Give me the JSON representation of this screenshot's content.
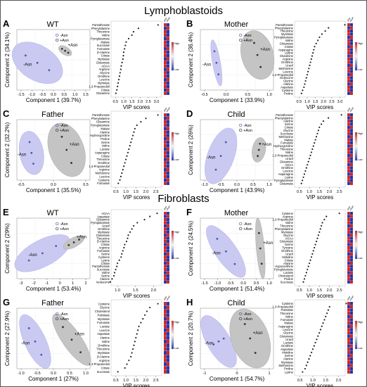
{
  "figure": {
    "section_titles": [
      "Lymphoblastoids",
      "Fibroblasts"
    ],
    "legend": {
      "minus": "-Asn",
      "plus": "+Asn"
    },
    "scale_labels": {
      "high": "High",
      "low": "Low"
    },
    "heatmap_colors": {
      "high": "#cc2222",
      "low": "#2233aa"
    }
  },
  "panels": [
    {
      "letter": "A",
      "title": "WT",
      "pca": {
        "xlabel": "Component 1 (39.7%)",
        "ylabel": "Component 2 (34.1%)",
        "xticks": [
          "-1.5",
          "-1.0",
          "-0.5",
          "0.0",
          "0.5",
          "1.0",
          "1.5"
        ],
        "yticks": [],
        "minus_label": "-Asn",
        "plus_label": "+Asn"
      },
      "vip": {
        "xlabel": "VIP scores",
        "xticks": [
          "0.5",
          "1.0",
          "1.5",
          "2.0",
          "2.5",
          "3.0"
        ],
        "metabolites": [
          "Pantothenate",
          "Phenylalanine",
          "Threonine",
          "Valine",
          "Pyroglutamate",
          "Malate",
          "Succinate",
          "Fumarate",
          "β-Alanine",
          "Citrate",
          "Myristate",
          "Glutamate",
          "AOAA",
          "Arginine",
          "Glycine",
          "Ornithine",
          "Leucine",
          "Myristate",
          "1,3-Propanediol",
          "Citrate",
          "Glutamine"
        ],
        "scores": [
          3.1,
          1.9,
          1.6,
          1.5,
          1.3,
          1.15,
          1.1,
          1.05,
          1.0,
          0.98,
          0.95,
          0.9,
          0.85,
          0.82,
          0.78,
          0.74,
          0.7,
          0.66,
          0.62,
          0.58,
          0.52
        ]
      }
    },
    {
      "letter": "B",
      "title": "Mother",
      "pca": {
        "xlabel": "Component 1 (33.9%)",
        "ylabel": "Component 2 (36.4%)",
        "xticks": [
          "-0.5",
          "0.0",
          "0.5",
          "1.0"
        ],
        "yticks": [],
        "minus_label": "-Asn",
        "plus_label": "+Asn"
      },
      "vip": {
        "xlabel": "VIP scores",
        "xticks": [
          "0.5",
          "1.0",
          "1.5",
          "2.0",
          "2.5",
          "3.0"
        ],
        "metabolites": [
          "Pantothenate",
          "Phenylalanine",
          "Threonine",
          "Myristate",
          "Pyroglutamate",
          "Valine",
          "Glutamate",
          "Citrate",
          "Asparagine",
          "Lysine",
          "Glutamine",
          "Arginine",
          "Ornithine",
          "Uracil",
          "Methionine",
          "Leucine",
          "1,3-Propanediol",
          "Isoleucine",
          "Glycine",
          "Alanine",
          "Aspartate",
          "Cysteine",
          "Proline"
        ],
        "scores": [
          3.3,
          2.3,
          2.1,
          1.9,
          1.75,
          1.65,
          1.55,
          1.45,
          1.4,
          1.35,
          1.3,
          1.25,
          1.2,
          1.15,
          1.1,
          1.05,
          1.0,
          0.95,
          0.9,
          0.85,
          0.8,
          0.72,
          0.65
        ]
      }
    },
    {
      "letter": "C",
      "title": "Father",
      "pca": {
        "xlabel": "Component 1 (35.5%)",
        "ylabel": "Component 2 (32.2%)",
        "xticks": [
          "-0.5",
          "0.0",
          "0.5"
        ],
        "yticks": [],
        "minus_label": "-Asn",
        "plus_label": "+Asn"
      },
      "vip": {
        "xlabel": "VIP scores",
        "xticks": [
          "0.5",
          "1.0",
          "1.5",
          "2.0",
          "2.5"
        ],
        "metabolites": [
          "Pantothenate",
          "Phenylalanine",
          "Glutamine",
          "Pyroglutamate",
          "Malate",
          "Alanine",
          "Hydroxyproline",
          "Proline",
          "Serine",
          "Valine",
          "Lactate",
          "Asparagine",
          "Citrate",
          "Threonine",
          "Ornithine",
          "1,3-Propanediol",
          "Arginine",
          "Methionine",
          "Leucine",
          "Cysteine",
          "Fumarate"
        ],
        "scores": [
          2.6,
          2.0,
          1.75,
          1.55,
          1.45,
          1.4,
          1.35,
          1.3,
          1.25,
          1.2,
          1.15,
          1.1,
          1.05,
          1.0,
          0.95,
          0.9,
          0.85,
          0.8,
          0.75,
          0.7,
          0.62
        ]
      }
    },
    {
      "letter": "D",
      "title": "Child",
      "pca": {
        "xlabel": "Component 1 (43.9%)",
        "ylabel": "Component 2 (26%)",
        "xticks": [
          "-1.0",
          "-0.5",
          "0.0",
          "0.5",
          "1.0"
        ],
        "yticks": [],
        "minus_label": "-Asn",
        "plus_label": "+Asn"
      },
      "vip": {
        "xlabel": "VIP scores",
        "xticks": [
          "0.5",
          "1.0",
          "1.5",
          "2.0",
          "2.5"
        ],
        "metabolites": [
          "Pantothenate",
          "Phenylalanine",
          "Alanine",
          "Serine",
          "Citrate",
          "Glycine",
          "Succinate",
          "Methionine",
          "Malate",
          "Fumarate",
          "Hydroxyproline",
          "Threonine",
          "Valine",
          "1,3-Propanediol",
          "Uracil",
          "Glutamine",
          "AOAA",
          "Ornithine",
          "Leucine",
          "Asparagine",
          "Lysine",
          "Pyroglutamate",
          "Glutamate"
        ],
        "scores": [
          2.6,
          1.95,
          1.7,
          1.6,
          1.5,
          1.45,
          1.4,
          1.35,
          1.3,
          1.25,
          1.2,
          1.15,
          1.1,
          1.05,
          1.0,
          0.95,
          0.9,
          0.85,
          0.8,
          0.75,
          0.7,
          0.65,
          0.6
        ]
      }
    },
    {
      "letter": "E",
      "title": "WT",
      "pca": {
        "xlabel": "Component 1 (53.4%)",
        "ylabel": "Component 2 (29%)",
        "xticks": [
          "-3",
          "-2",
          "-1",
          "0",
          "1",
          "2"
        ],
        "yticks": [],
        "minus_label": "-Asn",
        "plus_label": "+Asn"
      },
      "vip": {
        "xlabel": "VIP scores",
        "xticks": [
          "1.0",
          "1.5",
          "2.0"
        ],
        "metabolites": [
          "AOAA",
          "Aspartate",
          "Glutamine",
          "Pyroglutamate",
          "Uracil",
          "Ornithine",
          "Myristate",
          "Glutamate",
          "Threonine",
          "β-Alanine",
          "Citrate",
          "Arginine",
          "Fumarate",
          "Serine",
          "Cysteine",
          "Lysine",
          "Citrate",
          "Pantothenate",
          "Succinate",
          "Valine",
          "Serine",
          "Alanine",
          "Isoleucine"
        ],
        "scores": [
          2.1,
          1.9,
          1.75,
          1.55,
          1.45,
          1.4,
          1.35,
          1.3,
          1.28,
          1.25,
          1.2,
          1.18,
          1.15,
          1.12,
          1.1,
          1.05,
          1.0,
          0.98,
          0.95,
          0.92,
          0.9,
          0.85,
          0.8
        ]
      }
    },
    {
      "letter": "F",
      "title": "Mother",
      "pca": {
        "xlabel": "Component 1 (51.4%)",
        "ylabel": "Component 2 (24.5%)",
        "xticks": [
          "-1.5",
          "-1.0",
          "-0.5",
          "0.0",
          "0.5",
          "1.0"
        ],
        "yticks": [],
        "minus_label": "-Asn",
        "plus_label": "+Asn"
      },
      "vip": {
        "xlabel": "VIP scores",
        "xticks": [
          "0.5",
          "1.0",
          "1.5",
          "2.0",
          "2.5"
        ],
        "metabolites": [
          "Cysteine",
          "Arginine",
          "1,3-Propanediol",
          "Valine",
          "Threonine",
          "Phenylalanine",
          "Myristate",
          "Glycine",
          "AOAA",
          "Glutamate",
          "Serine",
          "Tyrosine",
          "Ornithine",
          "Uracil",
          "Histidine",
          "Citrate",
          "Alanine",
          "Hypoxanthine",
          "Pyroglutamate",
          "Lactate",
          "Cholesterol",
          "Proline",
          "Succinate"
        ],
        "scores": [
          2.5,
          1.85,
          1.75,
          1.65,
          1.6,
          1.55,
          1.5,
          1.45,
          1.4,
          1.35,
          1.3,
          1.25,
          1.2,
          1.15,
          1.1,
          1.05,
          1.0,
          0.95,
          0.9,
          0.85,
          0.8,
          0.75,
          0.7
        ]
      }
    },
    {
      "letter": "G",
      "title": "Father",
      "pca": {
        "xlabel": "Component 1 (27%)",
        "ylabel": "Component 2 (27.9%)",
        "xticks": [
          "-1.0",
          "-0.5",
          "0.0",
          "0.5",
          "1.0"
        ],
        "yticks": [],
        "minus_label": "-Asn",
        "plus_label": "+Asn"
      },
      "vip": {
        "xlabel": "VIP scores",
        "xticks": [
          "0.5",
          "1.0",
          "1.5",
          "2.0",
          "2.5"
        ],
        "metabolites": [
          "Cysteine",
          "Glycine",
          "Cholesterol",
          "Palmitate",
          "Myristate",
          "Fumarate",
          "Lactate",
          "Leucine",
          "Aspartate",
          "Alanine",
          "Valine",
          "Ornithine",
          "Threonine",
          "Myristate",
          "β-Alanine",
          "Arginine",
          "1,3-Propanediol",
          "Citrate",
          "Succinate"
        ],
        "scores": [
          2.6,
          2.2,
          2.05,
          1.95,
          1.85,
          1.75,
          1.65,
          1.6,
          1.55,
          1.5,
          1.45,
          1.4,
          1.35,
          1.3,
          1.25,
          1.15,
          1.05,
          0.95,
          0.6
        ]
      }
    },
    {
      "letter": "H",
      "title": "Child",
      "pca": {
        "xlabel": "Component 1 (54.7%)",
        "ylabel": "Component 2 (20.7%)",
        "xticks": [
          "-1",
          "0",
          "1"
        ],
        "yticks": [],
        "minus_label": "-Asn",
        "plus_label": "+Asn"
      },
      "vip": {
        "xlabel": "VIP scores",
        "xticks": [
          "0.5",
          "1.0",
          "1.5",
          "2.0"
        ],
        "metabolites": [
          "Cysteine",
          "1,3-Propanediol",
          "Palmitate",
          "Threonine",
          "Valine",
          "Fumarate",
          "Malate",
          "Asparagine",
          "Leucine",
          "Glycine",
          "Glutamate",
          "Uracil",
          "Lactate",
          "Ornithine",
          "Aspartate",
          "Histidine",
          "Serine",
          "Alanine",
          "Myristate",
          "Methionine",
          "Proline",
          "Lysine"
        ],
        "scores": [
          2.3,
          1.65,
          1.6,
          1.55,
          1.5,
          1.45,
          1.4,
          1.35,
          1.3,
          1.25,
          1.2,
          1.15,
          1.1,
          1.05,
          1.0,
          0.95,
          0.9,
          0.85,
          0.8,
          0.75,
          0.7,
          0.6
        ]
      }
    }
  ]
}
